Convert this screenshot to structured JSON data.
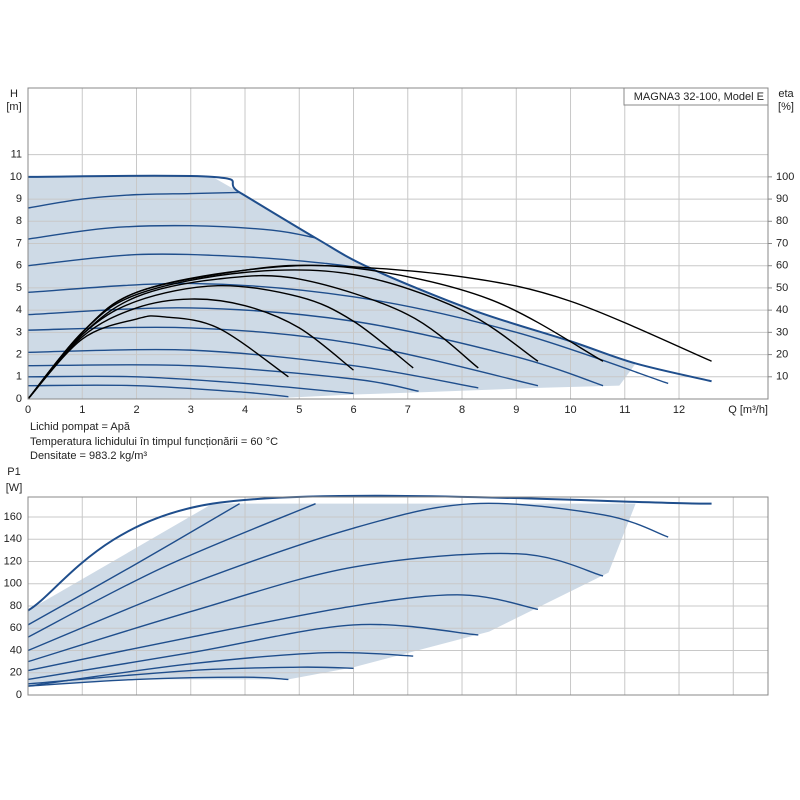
{
  "chart_data": [
    {
      "type": "line",
      "title": "MAGNA3 32-100, Model E",
      "x_label": "Q [m³/h]",
      "y_label": "H",
      "y_unit": "[m]",
      "y2_label": "eta",
      "y2_unit": "[%]",
      "notes": [
        "Lichid pompat = Apă",
        "Temperatura lichidului în timpul funcționării = 60 °C",
        "Densitate = 983.2 kg/m³"
      ],
      "xlim": [
        0,
        13.64
      ],
      "xticks": [
        0,
        1,
        2,
        3,
        4,
        5,
        6,
        7,
        8,
        9,
        10,
        11,
        12
      ],
      "xtick_labels": true,
      "ylim": [
        0,
        14
      ],
      "yticks": [
        0,
        1,
        2,
        3,
        4,
        5,
        6,
        7,
        8,
        9,
        10,
        11
      ],
      "y2lim": [
        0,
        140
      ],
      "y2ticks": [
        10,
        20,
        30,
        40,
        50,
        60,
        70,
        80,
        90,
        100
      ],
      "grid": true,
      "series": [
        {
          "color": "#c9d6e3",
          "fill": true,
          "x": [
            0,
            3.4,
            3.9,
            5.3,
            6.3,
            8.2,
            10,
            11.2,
            10.9,
            9.4,
            8.3,
            7.2,
            6,
            4.7,
            0
          ],
          "values": [
            10,
            10,
            9.3,
            7.25,
            5.9,
            4.0,
            2.6,
            1.6,
            0.6,
            0.5,
            0.4,
            0.3,
            0.2,
            0.05,
            0
          ]
        },
        {
          "color": "#1f4e8c",
          "width": 2,
          "x": [
            0,
            3.4,
            3.9,
            5.3,
            6.3,
            8.2,
            10,
            11.2,
            12.6
          ],
          "values": [
            10,
            10,
            9.3,
            7.25,
            5.9,
            4.0,
            2.6,
            1.6,
            0.8
          ]
        },
        {
          "color": "#1f4e8c",
          "x": [
            0,
            1,
            2,
            3,
            3.9
          ],
          "values": [
            8.6,
            9.0,
            9.2,
            9.25,
            9.3
          ]
        },
        {
          "color": "#1f4e8c",
          "x": [
            0,
            1.5,
            3,
            4.5,
            5.3
          ],
          "values": [
            7.2,
            7.7,
            7.8,
            7.6,
            7.25
          ]
        },
        {
          "color": "#1f4e8c",
          "x": [
            0,
            2,
            4,
            5.5,
            6.4
          ],
          "values": [
            6.0,
            6.5,
            6.4,
            6.1,
            5.8
          ]
        },
        {
          "color": "#1f4e8c",
          "x": [
            0,
            3,
            6,
            9,
            11.8
          ],
          "values": [
            4.8,
            5.2,
            4.6,
            3.0,
            0.7
          ]
        },
        {
          "color": "#1f4e8c",
          "x": [
            0,
            3,
            6,
            9,
            10.6
          ],
          "values": [
            3.8,
            4.1,
            3.5,
            1.9,
            0.6
          ]
        },
        {
          "color": "#1f4e8c",
          "x": [
            0,
            3,
            6,
            9.4
          ],
          "values": [
            3.1,
            3.2,
            2.5,
            0.6
          ]
        },
        {
          "color": "#1f4e8c",
          "x": [
            0,
            3,
            6,
            8.3
          ],
          "values": [
            2.1,
            2.2,
            1.5,
            0.5
          ]
        },
        {
          "color": "#1f4e8c",
          "x": [
            0,
            3,
            6,
            7.2
          ],
          "values": [
            1.5,
            1.5,
            0.9,
            0.35
          ]
        },
        {
          "color": "#1f4e8c",
          "x": [
            0,
            2,
            4,
            6
          ],
          "values": [
            1.0,
            1.0,
            0.7,
            0.25
          ]
        },
        {
          "color": "#1f4e8c",
          "x": [
            0,
            2,
            4,
            4.8
          ],
          "values": [
            0.6,
            0.6,
            0.3,
            0.1
          ]
        },
        {
          "color": "#000000",
          "axis": "y2",
          "x": [
            0,
            1,
            2,
            2.5,
            3.5,
            4.8
          ],
          "values": [
            0,
            27,
            36,
            37,
            32,
            10
          ]
        },
        {
          "color": "#000000",
          "axis": "y2",
          "x": [
            0,
            1,
            2,
            3,
            4,
            5,
            6
          ],
          "values": [
            0,
            28,
            41,
            45,
            42,
            32,
            13
          ]
        },
        {
          "color": "#000000",
          "axis": "y2",
          "x": [
            0,
            1,
            2,
            3.5,
            5,
            6,
            7.1
          ],
          "values": [
            0,
            29,
            44,
            51,
            46,
            35,
            14
          ]
        },
        {
          "color": "#000000",
          "axis": "y2",
          "x": [
            0,
            1,
            2,
            3.5,
            5,
            7,
            8.3
          ],
          "values": [
            0,
            29,
            46,
            54,
            54,
            38,
            14
          ]
        },
        {
          "color": "#000000",
          "axis": "y2",
          "x": [
            0,
            1,
            2,
            4,
            6,
            8,
            9.4
          ],
          "values": [
            0,
            30,
            47,
            57,
            56,
            40,
            17
          ]
        },
        {
          "color": "#000000",
          "axis": "y2",
          "x": [
            0,
            1,
            2,
            4,
            6,
            8.5,
            10.6
          ],
          "values": [
            0,
            30,
            48,
            58,
            59,
            45,
            17
          ]
        },
        {
          "color": "#000000",
          "axis": "y2",
          "x": [
            0,
            1,
            2,
            4,
            5.5,
            8,
            10,
            12.6
          ],
          "values": [
            0,
            30,
            48,
            58,
            60,
            55,
            44,
            17
          ]
        }
      ]
    },
    {
      "type": "line",
      "y_label": "P1",
      "y_unit": "[W]",
      "xlim": [
        0,
        13.64
      ],
      "xticks": [
        0,
        1,
        2,
        3,
        4,
        5,
        6,
        7,
        8,
        9,
        10,
        11,
        12,
        13
      ],
      "xtick_labels": false,
      "ylim": [
        0,
        178
      ],
      "yticks": [
        0,
        20,
        40,
        60,
        80,
        100,
        120,
        140,
        160
      ],
      "grid": true,
      "series": [
        {
          "color": "#c9d6e3",
          "fill": true,
          "x": [
            0,
            3.4,
            11.2,
            10.7,
            8.5,
            6,
            4.8,
            2,
            0
          ],
          "values": [
            76,
            172,
            172,
            110,
            57,
            25,
            14,
            14,
            8
          ]
        },
        {
          "color": "#1f4e8c",
          "width": 2,
          "x": [
            0,
            3.4,
            12.6
          ],
          "values": [
            76,
            172,
            172
          ]
        },
        {
          "color": "#1f4e8c",
          "x": [
            0,
            2,
            3.9
          ],
          "values": [
            63,
            118,
            172
          ]
        },
        {
          "color": "#1f4e8c",
          "x": [
            0,
            2.5,
            5.3
          ],
          "values": [
            52,
            115,
            172
          ]
        },
        {
          "color": "#1f4e8c",
          "x": [
            0,
            3,
            6,
            8.2,
            10.6,
            11.8
          ],
          "values": [
            40,
            100,
            150,
            172,
            162,
            142
          ]
        },
        {
          "color": "#1f4e8c",
          "x": [
            0,
            3,
            6,
            9,
            10.6
          ],
          "values": [
            30,
            75,
            115,
            127,
            107
          ]
        },
        {
          "color": "#1f4e8c",
          "x": [
            0,
            3,
            6,
            8,
            9.4
          ],
          "values": [
            22,
            52,
            80,
            90,
            77
          ]
        },
        {
          "color": "#1f4e8c",
          "x": [
            0,
            3,
            6,
            8.3
          ],
          "values": [
            14,
            38,
            63,
            54
          ]
        },
        {
          "color": "#1f4e8c",
          "x": [
            0,
            3,
            5.5,
            7.1
          ],
          "values": [
            8,
            28,
            38,
            35
          ]
        },
        {
          "color": "#1f4e8c",
          "x": [
            0,
            3,
            5,
            6
          ],
          "values": [
            10,
            22,
            25,
            24
          ]
        },
        {
          "color": "#1f4e8c",
          "x": [
            0,
            2,
            4,
            4.8
          ],
          "values": [
            8,
            14,
            16,
            14
          ]
        }
      ]
    }
  ]
}
